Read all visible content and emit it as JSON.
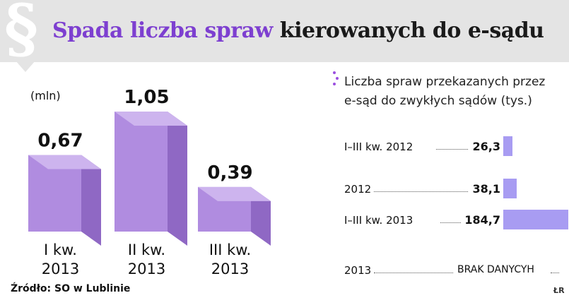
{
  "header": {
    "title_accent": "Spada liczba spraw",
    "title_rest": "kierowanych do e-sądu",
    "icon": "section-sign-icon"
  },
  "chart_data": [
    {
      "type": "bar",
      "unit": "(mln)",
      "categories": [
        "I kw.\n2013",
        "II kw.\n2013",
        "III kw.\n2013"
      ],
      "values": [
        0.67,
        1.05,
        0.39
      ],
      "value_labels": [
        "0,67",
        "1,05",
        "0,39"
      ],
      "color": "#b08ce0",
      "ylim": [
        0,
        1.05
      ]
    },
    {
      "type": "bar",
      "orientation": "horizontal",
      "title": "Liczba spraw przekazanych przez e-sąd do zwykłych sądów (tys.)",
      "categories": [
        "I–III kw. 2012",
        "2012",
        "I–III kw. 2013",
        "2013"
      ],
      "values": [
        26.3,
        38.1,
        184.7,
        null
      ],
      "value_labels": [
        "26,3",
        "38,1",
        "184,7",
        "BRAK DANYCYH"
      ],
      "color": "#a89cf2"
    }
  ],
  "footer": {
    "source": "Źródło: SO w Lublinie",
    "credit": "ŁR"
  }
}
